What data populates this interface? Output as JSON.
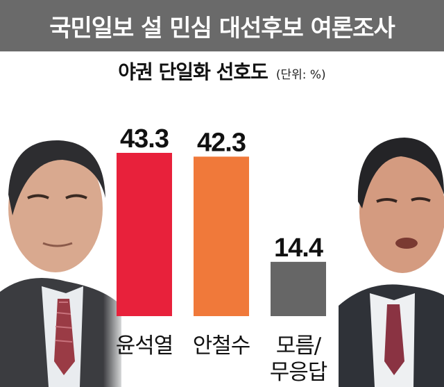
{
  "header": {
    "title": "국민일보 설 민심 대선후보 여론조사"
  },
  "subtitle": "야권 단일화 선호도",
  "unit": "(단위: %)",
  "colors": {
    "header_bg": "#6a6a6a",
    "bar_yoon": "#e8213b",
    "bar_ahn": "#f0793a",
    "bar_other": "#666666"
  },
  "photos": {
    "left": "person-photo-left",
    "right": "person-photo-right"
  },
  "chart_data": {
    "type": "bar",
    "title": "야권 단일화 선호도",
    "unit": "(단위: %)",
    "categories": [
      "윤석열",
      "안철수",
      "모름/\n무응답"
    ],
    "category_lines": [
      [
        "윤석열"
      ],
      [
        "안철수"
      ],
      [
        "모름/",
        "무응답"
      ]
    ],
    "values": [
      43.3,
      42.3,
      14.4
    ],
    "value_labels": [
      "43.3",
      "42.3",
      "14.4"
    ],
    "colors": [
      "#e8213b",
      "#f0793a",
      "#666666"
    ],
    "ylim": [
      0,
      50
    ],
    "grid": false,
    "legend": "none"
  }
}
